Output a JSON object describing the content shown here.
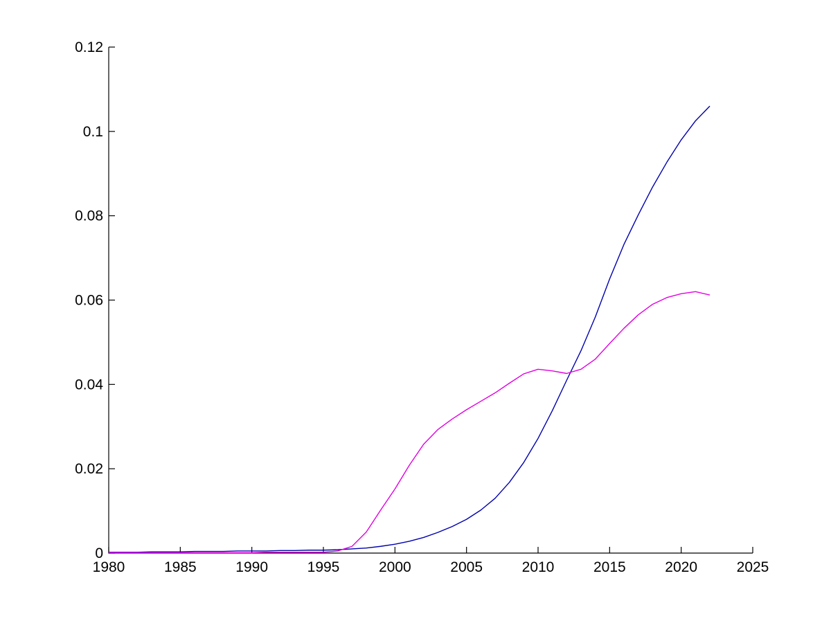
{
  "figure": {
    "background": "#ffffff",
    "axis_color": "#000000",
    "tick_label_color": "#000000"
  },
  "chart_data": {
    "type": "line",
    "title": "",
    "xlabel": "",
    "ylabel": "",
    "grid": false,
    "legend": "none",
    "xlim": [
      1980,
      2025
    ],
    "ylim": [
      0,
      0.12
    ],
    "x_ticks": [
      1980,
      1985,
      1990,
      1995,
      2000,
      2005,
      2010,
      2015,
      2020,
      2025
    ],
    "x_tick_labels": [
      "1980",
      "1985",
      "1990",
      "1995",
      "2000",
      "2005",
      "2010",
      "2015",
      "2020",
      "2025"
    ],
    "y_ticks": [
      0,
      0.02,
      0.04,
      0.06,
      0.08,
      0.1,
      0.12
    ],
    "y_tick_labels": [
      "0",
      "0.02",
      "0.04",
      "0.06",
      "0.08",
      "0.1",
      "0.12"
    ],
    "x": [
      1980,
      1981,
      1982,
      1983,
      1984,
      1985,
      1986,
      1987,
      1988,
      1989,
      1990,
      1991,
      1992,
      1993,
      1994,
      1995,
      1996,
      1997,
      1998,
      1999,
      2000,
      2001,
      2002,
      2003,
      2004,
      2005,
      2006,
      2007,
      2008,
      2009,
      2010,
      2011,
      2012,
      2013,
      2014,
      2015,
      2016,
      2017,
      2018,
      2019,
      2020,
      2021,
      2022
    ],
    "series": [
      {
        "name": "series-1-dark-blue",
        "color": "#0000AD",
        "values": [
          0.0002,
          0.0002,
          0.0002,
          0.0003,
          0.0003,
          0.0003,
          0.0004,
          0.0004,
          0.0004,
          0.0005,
          0.0005,
          0.0005,
          0.0006,
          0.0006,
          0.0007,
          0.0007,
          0.0008,
          0.001,
          0.0012,
          0.0016,
          0.0021,
          0.0028,
          0.0037,
          0.0049,
          0.0063,
          0.008,
          0.0102,
          0.013,
          0.0168,
          0.0215,
          0.0272,
          0.0338,
          0.041,
          0.048,
          0.056,
          0.065,
          0.0732,
          0.0802,
          0.0868,
          0.0927,
          0.098,
          0.1025,
          0.106
        ]
      },
      {
        "name": "series-2-magenta",
        "color": "#E100E1",
        "values": [
          0.0001,
          0.0001,
          0.0001,
          0.0001,
          0.0001,
          0.0001,
          0.0001,
          0.0001,
          0.0001,
          0.0001,
          0.0001,
          0.0002,
          0.0002,
          0.0002,
          0.0002,
          0.0002,
          0.0005,
          0.0016,
          0.005,
          0.0102,
          0.0152,
          0.0208,
          0.0258,
          0.0293,
          0.0318,
          0.034,
          0.036,
          0.038,
          0.0403,
          0.0425,
          0.0436,
          0.0432,
          0.0426,
          0.0436,
          0.046,
          0.0497,
          0.0533,
          0.0565,
          0.059,
          0.0606,
          0.0615,
          0.062,
          0.0612
        ]
      }
    ]
  }
}
